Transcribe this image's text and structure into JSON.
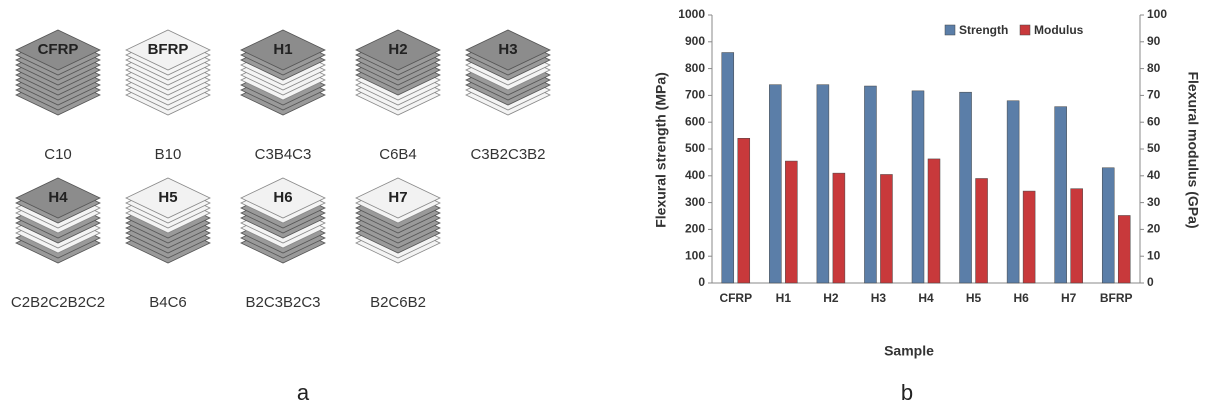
{
  "figure": {
    "panel_labels": [
      "a",
      "b"
    ]
  },
  "diagram": {
    "stacks": [
      {
        "label": "CFRP",
        "layup": "C10"
      },
      {
        "label": "BFRP",
        "layup": "B10"
      },
      {
        "label": "H1",
        "layup": "C3B4C3"
      },
      {
        "label": "H2",
        "layup": "C6B4"
      },
      {
        "label": "H3",
        "layup": "C3B2C3B2"
      },
      {
        "label": "H4",
        "layup": "C2B2C2B2C2"
      },
      {
        "label": "H5",
        "layup": "B4C6"
      },
      {
        "label": "H6",
        "layup": "B2C3B2C3"
      },
      {
        "label": "H7",
        "layup": "B2C6B2"
      }
    ]
  },
  "chart_data": {
    "type": "bar",
    "x_label": "Sample",
    "y_label": "Flexural strength (MPa)",
    "y2_label": "Flexural modulus (GPa)",
    "categories": [
      "CFRP",
      "H1",
      "H2",
      "H3",
      "H4",
      "H5",
      "H6",
      "H7",
      "BFRP"
    ],
    "series": [
      {
        "name": "Strength",
        "color": "#5b7ea8",
        "values": [
          860,
          740,
          740,
          735,
          717,
          712,
          680,
          658,
          430
        ]
      },
      {
        "name": "Modulus",
        "color": "#c8393b",
        "axis": "y2",
        "values": [
          54,
          45.5,
          41,
          40.5,
          46.3,
          39,
          34.3,
          35.2,
          25.2
        ]
      }
    ],
    "ylim": [
      0,
      1000
    ],
    "yticks": [
      0,
      100,
      200,
      300,
      400,
      500,
      600,
      700,
      800,
      900,
      1000
    ],
    "y2lim": [
      0,
      100
    ],
    "y2ticks": [
      0,
      10,
      20,
      30,
      40,
      50,
      60,
      70,
      80,
      90,
      100
    ],
    "legend": "upper right"
  }
}
